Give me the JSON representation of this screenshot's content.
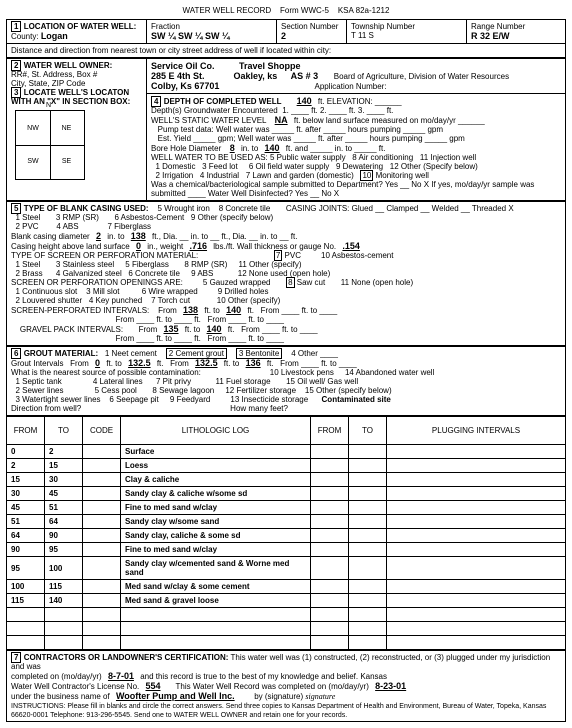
{
  "form": {
    "header_title": "WATER WELL RECORD",
    "form_no": "Form WWC-5",
    "ksa": "KSA 82a-1212"
  },
  "sec1": {
    "title": "LOCATION OF WATER WELL:",
    "county_label": "County:",
    "county": "Logan",
    "fraction_label": "Fraction",
    "fraction": "SW ¼  SW ¼  SW ¼",
    "section_label": "Section Number",
    "section": "2",
    "township_label": "Township Number",
    "township": "T  11  S",
    "range_label": "Range Number",
    "range": "R  32  E/W",
    "dist_label": "Distance and direction from nearest town or city street address of well if located within city:"
  },
  "sec2": {
    "title": "WATER WELL OWNER:",
    "owner": "Service Oil Co.",
    "addr_label": "RR#, St. Address, Box #",
    "addr": "285 E 4th St.",
    "city_label": "City, State, ZIP Code",
    "city": "Colby, Ks 67701",
    "loc2": "Travel Shoppe",
    "loc3": "Oakley, ks",
    "as": "AS # 3",
    "board": "Board of Agriculture, Division of Water Resources",
    "app_label": "Application Number:"
  },
  "sec3": {
    "title": "LOCATE WELL'S LOCATON WITH AN \"X\" IN SECTION BOX:"
  },
  "sec4": {
    "title": "DEPTH OF COMPLETED WELL",
    "depth": "140",
    "elevation_label": "ft. ELEVATION:",
    "gw_label": "Depth(s) Groundwater Encountered",
    "gw1": "1.",
    "gw2": "ft.  2.",
    "gw3": "ft.  3.",
    "static_label": "WELL'S STATIC WATER LEVEL",
    "static": "NA",
    "static_unit": "ft. below land surface measured on mo/day/yr",
    "pump_label": "Pump test data:  Well water was _____ ft. after _____ hours pumping _____ gpm",
    "est_label": "Est. Yield _____ gpm;  Well water was _____ ft. after _____ hours pumping _____ gpm",
    "bore_label": "Bore Hole Diameter",
    "bore1": "8",
    "bore1_to": "in. to",
    "bore1_ft": "140",
    "bore1_ft_lbl": "ft. and _____ in. to _____ ft.",
    "use_label": "WELL WATER TO BE USED AS:",
    "uses": [
      "1 Domestic",
      "2 Irrigation",
      "3 Feed lot",
      "4 Industrial",
      "5 Public water supply",
      "6 Oil field water supply",
      "7 Lawn and garden (domestic)",
      "8 Air conditioning",
      "9 Dewatering",
      "10 Monitoring well",
      "11 Injection well",
      "12 Other (Specify below)"
    ],
    "chem_label": "Was a chemical/bacteriological sample submitted to Department? Yes __ No X  If yes, mo/day/yr sample was submitted ____  Water Well Disinfected? Yes __ No X"
  },
  "sec5": {
    "title": "TYPE OF BLANK CASING USED:",
    "types": [
      "1 Steel",
      "2 PVC",
      "3 RMP (SR)",
      "4 ABS",
      "5 Wrought iron",
      "6 Asbestos-Cement",
      "7 Fiberglass",
      "8 Concrete tile",
      "9 Other (specify below)"
    ],
    "joints_label": "CASING JOINTS: Glued __  Clamped __  Welded __  Threaded  X",
    "blank_label": "Blank casing diameter",
    "blank_dia": "2",
    "blank_to": "in. to",
    "blank_ft": "138",
    "blank_ft2_label": "ft., Dia. __ in. to __ ft., Dia. __ in. to __ ft.",
    "height_label": "Casing height above land surface",
    "height": "0",
    "weight_label": "in., weight",
    "weight": ".716",
    "weight_unit": "lbs./ft.  Wall thickness or gauge No.",
    "wall": ".154",
    "screen_title": "TYPE OF SCREEN OR PERFORATION MATERIAL:",
    "screen_types": [
      "1 Steel",
      "2 Brass",
      "3 Stainless steel",
      "4 Galvanized steel",
      "5 Fiberglass",
      "6 Concrete tile",
      "7 PVC",
      "8 RMP (SR)",
      "9 ABS",
      "10 Asbestos-cement",
      "11 Other (specify)",
      "12 None used (open hole)"
    ],
    "open_title": "SCREEN OR PERFORATION OPENINGS ARE:",
    "open_types": [
      "1 Continuous slot",
      "2 Louvered shutter",
      "3 Mill slot",
      "4 Key punched",
      "5 Gauzed wrapped",
      "6 Wire wrapped",
      "7 Torch cut",
      "8 Saw cut",
      "9 Drilled holes",
      "10 Other (specify)",
      "11 None (open hole)"
    ],
    "perf_label": "SCREEN-PERFORATED INTERVALS:",
    "perf_from": "138",
    "perf_to": "140",
    "gravel_label": "GRAVEL PACK INTERVALS:",
    "gravel_from": "135",
    "gravel_to": "140"
  },
  "sec6": {
    "title": "GROUT MATERIAL:",
    "materials": [
      "1 Neet cement",
      "2 Cement grout",
      "3 Bentonite",
      "4 Other"
    ],
    "intervals_label": "Grout Intervals",
    "gi_from1": "0",
    "gi_to1": "132.5",
    "gi_from2": "132.5",
    "gi_to2": "136",
    "source_label": "What is the nearest source of possible contamination:",
    "sources": [
      "1 Septic tank",
      "2 Sewer lines",
      "3 Watertight sewer lines",
      "4 Lateral lines",
      "5 Cess pool",
      "6 Seepage pit",
      "7 Pit privy",
      "8 Sewage lagoon",
      "9 Feedyard",
      "10 Livestock pens",
      "11 Fuel storage",
      "12 Fertilizer storage",
      "13 Insecticide storage",
      "14 Abandoned water well",
      "15 Oil well/ Gas well",
      "15 Other (specify below)"
    ],
    "contaminated": "Contaminated site",
    "direction_label": "Direction from well?",
    "howmany_label": "How many feet?"
  },
  "litholog": {
    "headers": [
      "FROM",
      "TO",
      "CODE",
      "LITHOLOGIC LOG",
      "FROM",
      "TO",
      "PLUGGING INTERVALS"
    ],
    "rows": [
      [
        "0",
        "2",
        "",
        "Surface",
        "",
        "",
        ""
      ],
      [
        "2",
        "15",
        "",
        "Loess",
        "",
        "",
        ""
      ],
      [
        "15",
        "30",
        "",
        "Clay & caliche",
        "",
        "",
        ""
      ],
      [
        "30",
        "45",
        "",
        "Sandy clay & caliche w/some sd",
        "",
        "",
        ""
      ],
      [
        "45",
        "51",
        "",
        "Fine to med sand w/clay",
        "",
        "",
        ""
      ],
      [
        "51",
        "64",
        "",
        "Sandy clay w/some sand",
        "",
        "",
        ""
      ],
      [
        "64",
        "90",
        "",
        "Sandy clay, caliche & some sd",
        "",
        "",
        ""
      ],
      [
        "90",
        "95",
        "",
        "Fine to med sand w/clay",
        "",
        "",
        ""
      ],
      [
        "95",
        "100",
        "",
        "Sandy clay w/cemented sand & Worne med sand",
        "",
        "",
        ""
      ],
      [
        "100",
        "115",
        "",
        "Med sand w/clay & some cement",
        "",
        "",
        ""
      ],
      [
        "115",
        "140",
        "",
        "Med sand & gravel loose",
        "",
        "",
        ""
      ]
    ]
  },
  "sec7": {
    "title": "CONTRACTORS OR LANDOWNER'S CERTIFICATION:",
    "text1": "This water well was (1) constructed, (2) reconstructed, or (3) plugged under my jurisdiction and was",
    "completed_label": "completed on (mo/day/yr)",
    "completed": "8-7-01",
    "text2": "and this record is true to the best of my knowledge and belief. Kansas",
    "license_label": "Water Well Contractor's License No.",
    "license": "554",
    "record_label": "This Water Well Record was completed on (mo/day/yr)",
    "record_date": "8-23-01",
    "business_label": "under the business name of",
    "business": "Woofter Pump and Well Inc.",
    "sig_label": "by (signature)",
    "footer": "INSTRUCTIONS: Please fill in blanks and circle the correct answers. Send three copies to Kansas Department of Health and Environment, Bureau of Water, Topeka, Kansas 66620-0001  Telephone: 913-296-5545.  Send one to WATER WELL OWNER and retain one for your records."
  },
  "side": {
    "office": "OFFICE USE ONLY",
    "t": "T",
    "r": "R",
    "sec": "SEC"
  }
}
